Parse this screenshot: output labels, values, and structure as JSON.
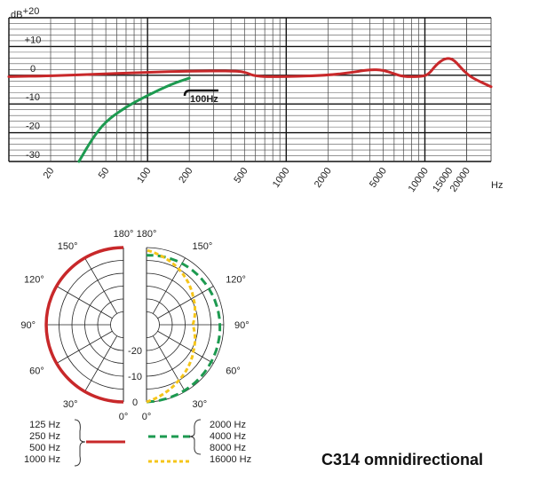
{
  "chart_data": [
    {
      "type": "line",
      "title": "",
      "xlabel": "Hz",
      "ylabel": "dB",
      "x_scale": "log",
      "xlim": [
        10,
        30000
      ],
      "ylim": [
        -30,
        20
      ],
      "x_ticks": [
        "20",
        "50",
        "100",
        "200",
        "500",
        "1000",
        "2000",
        "5000",
        "10000",
        "15000",
        "20000"
      ],
      "y_ticks": [
        "+20",
        "+10",
        "0",
        "-10",
        "-20",
        "-30"
      ],
      "grid": true,
      "annotation": "100Hz",
      "series": [
        {
          "name": "",
          "color": "#c8282a",
          "points": [
            [
              10,
              -0.5
            ],
            [
              20,
              -0.2
            ],
            [
              50,
              0.5
            ],
            [
              100,
              1
            ],
            [
              200,
              1.5
            ],
            [
              400,
              1.5
            ],
            [
              500,
              1.2
            ],
            [
              600,
              -0.5
            ],
            [
              1000,
              -0.5
            ],
            [
              2000,
              0
            ],
            [
              3000,
              1
            ],
            [
              4000,
              2
            ],
            [
              5000,
              1.8
            ],
            [
              6000,
              0.5
            ],
            [
              7000,
              -0.5
            ],
            [
              9000,
              -0.5
            ],
            [
              10500,
              0
            ],
            [
              12000,
              3.5
            ],
            [
              13500,
              5.5
            ],
            [
              15000,
              6
            ],
            [
              16500,
              5
            ],
            [
              19000,
              1.5
            ],
            [
              22000,
              -1
            ],
            [
              30000,
              -4
            ]
          ]
        },
        {
          "name": "",
          "color": "#1d9a50",
          "points": [
            [
              32,
              -30
            ],
            [
              40,
              -22
            ],
            [
              50,
              -16
            ],
            [
              70,
              -11
            ],
            [
              100,
              -7
            ],
            [
              150,
              -3
            ],
            [
              200,
              -1
            ]
          ]
        }
      ]
    },
    {
      "type": "polar",
      "title": "",
      "angle_labels_left": [
        "180°",
        "150°",
        "120°",
        "90°",
        "60°",
        "30°",
        "0°"
      ],
      "angle_labels_right": [
        "180°",
        "150°",
        "120°",
        "90°",
        "60°",
        "30°",
        "0°"
      ],
      "radial_labels": [
        "-20",
        "-10",
        "0"
      ],
      "legend_left_lines": [
        "125 Hz",
        "250 Hz",
        "500 Hz",
        "1000 Hz"
      ],
      "legend_right_green": [
        "2000 Hz",
        "4000 Hz",
        "8000 Hz"
      ],
      "legend_right_yellow": "16000 Hz",
      "series": [
        {
          "name": "",
          "color": "#c8282a",
          "dash": "solid",
          "angles_deg": [
            0,
            180
          ],
          "level_db": 0
        },
        {
          "name": "",
          "color": "#1d9a50",
          "dash": "dashed",
          "angles_deg": [
            0,
            30,
            60,
            90,
            120,
            150,
            180
          ],
          "levels_db": [
            0,
            -0.5,
            -1,
            -1.5,
            -2,
            -2.5,
            -3
          ]
        },
        {
          "name": "",
          "color": "#f5c51a",
          "dash": "dashed",
          "angles_deg": [
            0,
            30,
            60,
            90,
            120,
            150,
            180
          ],
          "levels_db": [
            0,
            -5,
            -9,
            -12,
            -9,
            -5,
            -1
          ]
        }
      ]
    }
  ],
  "product_title": "C314 omnidirectional"
}
